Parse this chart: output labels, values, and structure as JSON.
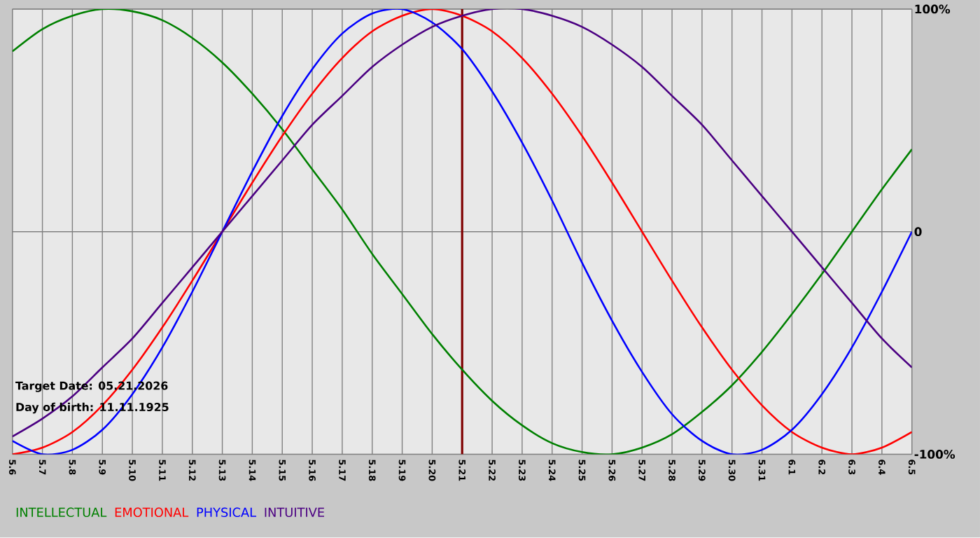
{
  "chart_data": {
    "type": "line",
    "categories": [
      "5.6",
      "5.7",
      "5.8",
      "5.9",
      "5.10",
      "5.11",
      "5.12",
      "5.13",
      "5.14",
      "5.15",
      "5.16",
      "5.17",
      "5.18",
      "5.19",
      "5.20",
      "5.21",
      "5.22",
      "5.23",
      "5.24",
      "5.25",
      "5.26",
      "5.27",
      "5.28",
      "5.29",
      "5.30",
      "5.31",
      "6.1",
      "6.2",
      "6.3",
      "6.4",
      "6.5"
    ],
    "series": [
      {
        "name": "INTELLECTUAL",
        "color": "#008000",
        "values": [
          81,
          91,
          97,
          100,
          99,
          95,
          87,
          76,
          62,
          46,
          28,
          10,
          -10,
          -28,
          -46,
          -62,
          -76,
          -87,
          -95,
          -99,
          -100,
          -97,
          -91,
          -81,
          -69,
          -54,
          -37,
          -19,
          0,
          19,
          37
        ]
      },
      {
        "name": "EMOTIONAL",
        "color": "#ff0000",
        "values": [
          -100,
          -97,
          -90,
          -78,
          -62,
          -43,
          -22,
          0,
          22,
          43,
          62,
          78,
          90,
          97,
          100,
          97,
          90,
          78,
          62,
          43,
          22,
          0,
          -22,
          -43,
          -62,
          -78,
          -90,
          -97,
          -100,
          -97,
          -90
        ]
      },
      {
        "name": "PHYSICAL",
        "color": "#0000ff",
        "values": [
          -94,
          -100,
          -98,
          -89,
          -73,
          -52,
          -27,
          0,
          27,
          52,
          73,
          89,
          98,
          100,
          94,
          82,
          63,
          40,
          14,
          -14,
          -40,
          -63,
          -82,
          -94,
          -100,
          -98,
          -89,
          -73,
          -52,
          -27,
          0
        ]
      },
      {
        "name": "INTUITIVE",
        "color": "#4b0082",
        "values": [
          -92,
          -84,
          -74,
          -61,
          -48,
          -32,
          -16,
          0,
          16,
          32,
          48,
          61,
          74,
          84,
          92,
          97,
          100,
          100,
          97,
          92,
          84,
          74,
          61,
          48,
          32,
          16,
          0,
          -16,
          -32,
          -48,
          -61
        ]
      }
    ],
    "ylim": [
      -100,
      100
    ],
    "yticks": [
      {
        "value": 100,
        "label": "100%"
      },
      0,
      {
        "value": -100,
        "label": "-100%"
      }
    ],
    "grid": true,
    "legend": "bottom",
    "ref_lines": [
      {
        "axis": "x",
        "value": "5.21",
        "color": "#800000"
      }
    ],
    "annotations": [
      "Target Date: 05.21.2026",
      "Day of birth: 11.11.1925"
    ]
  }
}
